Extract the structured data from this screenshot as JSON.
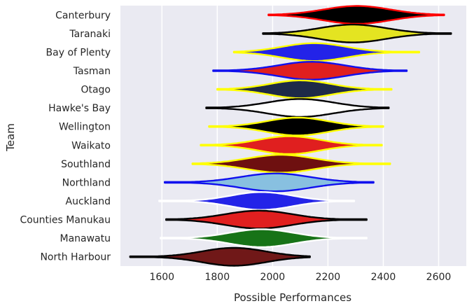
{
  "chart_data": {
    "type": "violin",
    "orientation": "horizontal",
    "title": "",
    "xlabel": "Possible Performances",
    "ylabel": "Team",
    "xlim": [
      1450,
      2700
    ],
    "xticks": [
      1600,
      1800,
      2000,
      2200,
      2400,
      2600
    ],
    "xtick_labels": [
      "1600",
      "1800",
      "2000",
      "2200",
      "2400",
      "2600"
    ],
    "grid": true,
    "background": "#eaeaf2",
    "gridline_color": "#ffffff",
    "categories": [
      "Canterbury",
      "Taranaki",
      "Bay of Plenty",
      "Tasman",
      "Otago",
      "Hawke's Bay",
      "Wellington",
      "Waikato",
      "Southland",
      "Northland",
      "Auckland",
      "Counties Manukau",
      "Manawatu",
      "North Harbour"
    ],
    "series": [
      {
        "team": "Canterbury",
        "min": 1985,
        "max": 2620,
        "median": 2305,
        "spread": 120,
        "fill": "#000000",
        "edge": "#ff0000"
      },
      {
        "team": "Taranaki",
        "min": 1965,
        "max": 2645,
        "median": 2290,
        "spread": 120,
        "fill": "#e4e421",
        "edge": "#000000"
      },
      {
        "team": "Bay of Plenty",
        "min": 1860,
        "max": 2530,
        "median": 2150,
        "spread": 115,
        "fill": "#2323e8",
        "edge": "#ffff00"
      },
      {
        "team": "Tasman",
        "min": 1785,
        "max": 2485,
        "median": 2140,
        "spread": 120,
        "fill": "#e01f1f",
        "edge": "#1010ee"
      },
      {
        "team": "Otago",
        "min": 1800,
        "max": 2430,
        "median": 2100,
        "spread": 110,
        "fill": "#1e2a48",
        "edge": "#ffff00"
      },
      {
        "team": "Hawke's Bay",
        "min": 1760,
        "max": 2420,
        "median": 2100,
        "spread": 120,
        "fill": "#ffffff",
        "edge": "#000000"
      },
      {
        "team": "Wellington",
        "min": 1770,
        "max": 2400,
        "median": 2090,
        "spread": 110,
        "fill": "#000000",
        "edge": "#ffff00"
      },
      {
        "team": "Waikato",
        "min": 1740,
        "max": 2395,
        "median": 2060,
        "spread": 110,
        "fill": "#e01f1f",
        "edge": "#ffff00"
      },
      {
        "team": "Southland",
        "min": 1710,
        "max": 2425,
        "median": 2030,
        "spread": 120,
        "fill": "#6e1010",
        "edge": "#ffff00"
      },
      {
        "team": "Northland",
        "min": 1610,
        "max": 2365,
        "median": 2010,
        "spread": 125,
        "fill": "#88c0e0",
        "edge": "#1010ee"
      },
      {
        "team": "Auckland",
        "min": 1590,
        "max": 2295,
        "median": 1960,
        "spread": 110,
        "fill": "#2323e8",
        "edge": "#ffffff"
      },
      {
        "team": "Counties Manukau",
        "min": 1615,
        "max": 2340,
        "median": 1950,
        "spread": 120,
        "fill": "#e01f1f",
        "edge": "#000000"
      },
      {
        "team": "Manawatu",
        "min": 1595,
        "max": 2340,
        "median": 1960,
        "spread": 115,
        "fill": "#177317",
        "edge": "#ffffff"
      },
      {
        "team": "North Harbour",
        "min": 1485,
        "max": 2135,
        "median": 1860,
        "spread": 115,
        "fill": "#701818",
        "edge": "#000000"
      }
    ]
  }
}
